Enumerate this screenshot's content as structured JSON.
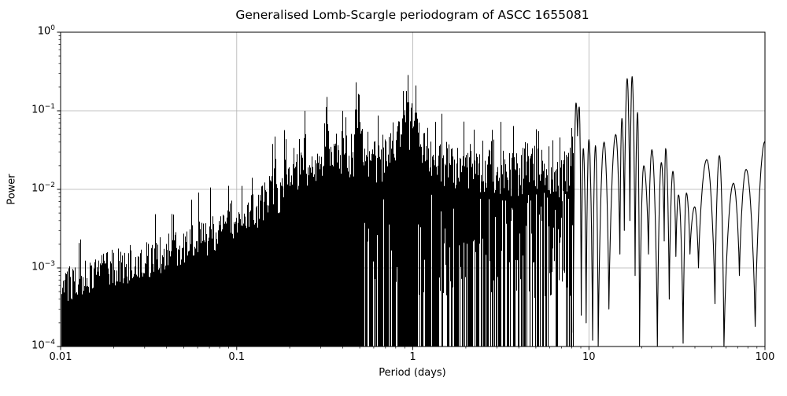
{
  "chart_data": {
    "type": "line",
    "title": "Generalised Lomb-Scargle periodogram of ASCC 1655081",
    "xlabel": "Period (days)",
    "ylabel": "Power",
    "x_scale": "log",
    "y_scale": "log",
    "xlim": [
      0.01,
      100
    ],
    "ylim": [
      0.0001,
      1
    ],
    "grid": true,
    "legend": "none",
    "line_color": "#000000",
    "grid_color": "#b0b0b0",
    "background_color": "#ffffff",
    "x_ticks": [
      {
        "value": 0.01,
        "label": "0.01"
      },
      {
        "value": 0.1,
        "label": "0.1"
      },
      {
        "value": 1,
        "label": "1"
      },
      {
        "value": 10,
        "label": "10"
      },
      {
        "value": 100,
        "label": "100"
      }
    ],
    "y_ticks": [
      {
        "value": 1,
        "mantissa": "10",
        "exponent": "0"
      },
      {
        "value": 0.1,
        "mantissa": "10",
        "exponent": "−1"
      },
      {
        "value": 0.01,
        "mantissa": "10",
        "exponent": "−2"
      },
      {
        "value": 0.001,
        "mantissa": "10",
        "exponent": "−3"
      },
      {
        "value": 0.0001,
        "mantissa": "10",
        "exponent": "−4"
      }
    ],
    "envelope_top": [
      [
        0.01,
        0.0011
      ],
      [
        0.015,
        0.0014
      ],
      [
        0.02,
        0.0018
      ],
      [
        0.03,
        0.0022
      ],
      [
        0.05,
        0.0032
      ],
      [
        0.07,
        0.0046
      ],
      [
        0.1,
        0.008
      ],
      [
        0.13,
        0.01
      ],
      [
        0.162,
        0.018
      ],
      [
        0.166,
        0.032
      ],
      [
        0.17,
        0.012
      ],
      [
        0.185,
        0.022
      ],
      [
        0.19,
        0.048
      ],
      [
        0.196,
        0.022
      ],
      [
        0.22,
        0.03
      ],
      [
        0.235,
        0.035
      ],
      [
        0.243,
        0.1
      ],
      [
        0.25,
        0.035
      ],
      [
        0.27,
        0.03
      ],
      [
        0.31,
        0.05
      ],
      [
        0.324,
        0.15
      ],
      [
        0.335,
        0.05
      ],
      [
        0.36,
        0.04
      ],
      [
        0.39,
        0.04
      ],
      [
        0.398,
        0.1
      ],
      [
        0.405,
        0.04
      ],
      [
        0.42,
        0.05
      ],
      [
        0.46,
        0.055
      ],
      [
        0.474,
        0.23
      ],
      [
        0.495,
        0.16
      ],
      [
        0.52,
        0.06
      ],
      [
        0.55,
        0.055
      ],
      [
        0.62,
        0.045
      ],
      [
        0.7,
        0.055
      ],
      [
        0.8,
        0.08
      ],
      [
        0.86,
        0.1
      ],
      [
        0.88,
        0.178
      ],
      [
        0.9,
        0.12
      ],
      [
        0.932,
        0.285
      ],
      [
        0.96,
        0.1
      ],
      [
        1.0,
        0.15
      ],
      [
        1.042,
        0.21
      ],
      [
        1.07,
        0.08
      ],
      [
        1.15,
        0.07
      ],
      [
        1.3,
        0.05
      ],
      [
        1.5,
        0.045
      ],
      [
        1.8,
        0.035
      ],
      [
        2.0,
        0.042
      ],
      [
        2.5,
        0.03
      ],
      [
        3.0,
        0.035
      ],
      [
        4.0,
        0.03
      ],
      [
        4.6,
        0.05
      ],
      [
        5.0,
        0.04
      ],
      [
        6.0,
        0.035
      ],
      [
        7.0,
        0.028
      ],
      [
        7.6,
        0.04
      ],
      [
        8.15,
        0.08
      ]
    ],
    "major_peaks": [
      [
        0.243,
        0.1
      ],
      [
        0.324,
        0.15
      ],
      [
        0.398,
        0.1
      ],
      [
        0.474,
        0.23
      ],
      [
        0.495,
        0.16
      ],
      [
        0.88,
        0.178
      ],
      [
        0.932,
        0.285
      ],
      [
        1.042,
        0.21
      ]
    ],
    "resolved_lobes": [
      [
        "n",
        8.15,
        0.00015
      ],
      [
        "p",
        8.45,
        0.126
      ],
      [
        "n",
        8.62,
        0.048
      ],
      [
        "p",
        8.82,
        0.112
      ],
      [
        "n",
        9.05,
        0.00025
      ],
      [
        "p",
        9.3,
        0.033
      ],
      [
        "n",
        9.65,
        0.0002
      ],
      [
        "p",
        10.0,
        0.043
      ],
      [
        "n",
        10.5,
        0.00012
      ],
      [
        "p",
        10.9,
        0.036
      ],
      [
        "n",
        11.3,
        0.0001
      ],
      [
        "p",
        12.2,
        0.04
      ],
      [
        "n",
        13.0,
        0.0003
      ],
      [
        "p",
        14.2,
        0.05
      ],
      [
        "n",
        15.0,
        0.0015
      ],
      [
        "p",
        15.4,
        0.08
      ],
      [
        "n",
        15.9,
        0.003
      ],
      [
        "p",
        16.5,
        0.257
      ],
      [
        "n",
        17.1,
        0.004
      ],
      [
        "p",
        17.6,
        0.272
      ],
      [
        "n",
        18.3,
        0.0008
      ],
      [
        "p",
        18.9,
        0.095
      ],
      [
        "n",
        19.4,
        0.0001
      ],
      [
        "p",
        20.5,
        0.02
      ],
      [
        "n",
        21.8,
        0.0015
      ],
      [
        "p",
        22.8,
        0.032
      ],
      [
        "n",
        24.5,
        0.0001
      ],
      [
        "p",
        25.8,
        0.022
      ],
      [
        "n",
        26.8,
        0.0022
      ],
      [
        "p",
        27.3,
        0.033
      ],
      [
        "n",
        28.6,
        0.0004
      ],
      [
        "p",
        30.0,
        0.017
      ],
      [
        "n",
        31.2,
        0.0014
      ],
      [
        "p",
        32.3,
        0.0085
      ],
      [
        "n",
        34.3,
        0.00011
      ],
      [
        "p",
        35.8,
        0.009
      ],
      [
        "n",
        37.5,
        0.0015
      ],
      [
        "p",
        39.9,
        0.006
      ],
      [
        "n",
        41.9,
        0.001
      ],
      [
        "p",
        46.7,
        0.024
      ],
      [
        "n",
        52.0,
        0.00035
      ],
      [
        "p",
        55.1,
        0.027
      ],
      [
        "n",
        58.5,
        0.0001
      ],
      [
        "p",
        66.2,
        0.012
      ],
      [
        "n",
        71.6,
        0.0008
      ],
      [
        "p",
        78.2,
        0.018
      ],
      [
        "n",
        88.0,
        0.00018
      ],
      [
        "p",
        100,
        0.041
      ]
    ],
    "solid_fill_max_period": 0.42,
    "dense_column_max_period": 8.15,
    "noise_seed": 20
  }
}
